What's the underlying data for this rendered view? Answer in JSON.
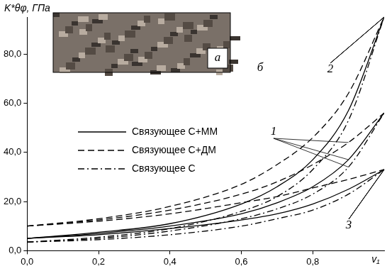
{
  "chart_data": {
    "type": "line",
    "y_label": "K*θφ, ГПа",
    "x_label": "v₁",
    "x": [
      0,
      0.2,
      0.4,
      0.6,
      0.7,
      0.8,
      0.9,
      1.0
    ],
    "series": [
      {
        "name": "Связующее С+ММ",
        "color": "#000000",
        "line_style": "solid",
        "values": [
          5,
          7,
          10,
          15,
          19.5,
          26,
          37,
          56
        ]
      },
      {
        "name": "Связующее С+ДМ",
        "color": "#000000",
        "line_style": "dashed",
        "values": [
          10,
          12.5,
          16.5,
          23,
          28,
          35,
          44,
          56
        ]
      },
      {
        "name": "Связующее С",
        "color": "#000000",
        "line_style": "dashdot",
        "values": [
          3.5,
          5,
          8,
          13,
          17,
          23,
          34,
          56
        ]
      },
      {
        "name": "Связующее С+ММ",
        "color": "#000000",
        "line_style": "solid",
        "values": [
          5,
          7.5,
          11,
          19,
          26,
          37,
          57,
          95
        ]
      },
      {
        "name": "Связующее С+ДМ",
        "color": "#000000",
        "line_style": "dashed",
        "values": [
          10,
          13,
          18,
          27,
          35,
          46,
          64,
          95
        ]
      },
      {
        "name": "Связующее С",
        "color": "#000000",
        "line_style": "dashdot",
        "values": [
          3.5,
          5.5,
          9,
          16,
          22,
          33,
          53,
          95
        ]
      },
      {
        "name": "Связующее С+ММ",
        "color": "#000000",
        "line_style": "solid",
        "values": [
          5,
          6.5,
          9,
          12.5,
          15,
          19,
          25,
          33
        ]
      },
      {
        "name": "Связующее С+ДМ",
        "color": "#000000",
        "line_style": "dashed",
        "values": [
          10,
          12,
          15,
          19.5,
          22,
          25.5,
          29,
          33
        ]
      },
      {
        "name": "Связующее С",
        "color": "#000000",
        "line_style": "dashdot",
        "values": [
          3.5,
          4.5,
          6.5,
          10,
          13,
          16.5,
          23,
          33
        ]
      }
    ],
    "xlim": [
      0,
      1
    ],
    "ylim": [
      0,
      95
    ],
    "xticks": [
      {
        "value": 0,
        "label": "0,0"
      },
      {
        "value": 0.2,
        "label": "0,2"
      },
      {
        "value": 0.4,
        "label": "0,4"
      },
      {
        "value": 0.6,
        "label": "0,6"
      },
      {
        "value": 0.8,
        "label": "0,8"
      }
    ],
    "yticks": [
      {
        "value": 0,
        "label": "0,0"
      },
      {
        "value": 20,
        "label": "20,0"
      },
      {
        "value": 40,
        "label": "40,0"
      },
      {
        "value": 60,
        "label": "60,0"
      },
      {
        "value": 80,
        "label": "80,0"
      }
    ],
    "grid": false,
    "legend": "left",
    "annotations": [
      "а",
      "б",
      "1",
      "2",
      "3"
    ]
  }
}
